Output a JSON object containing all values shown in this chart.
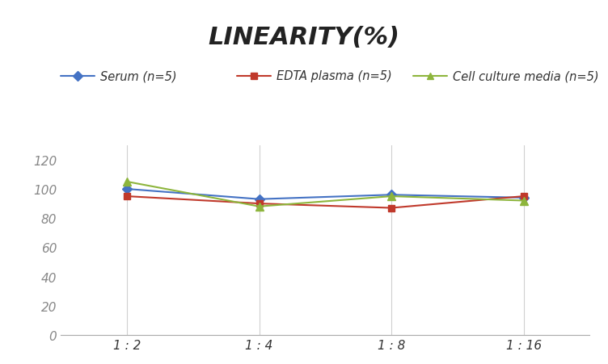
{
  "title": "LINEARITY(%)",
  "x_labels": [
    "1 : 2",
    "1 : 4",
    "1 : 8",
    "1 : 16"
  ],
  "series": [
    {
      "label": "Serum (n=5)",
      "values": [
        100,
        93,
        96,
        94
      ],
      "color": "#4472C4",
      "marker": "D",
      "marker_size": 6,
      "linewidth": 1.5
    },
    {
      "label": "EDTA plasma (n=5)",
      "values": [
        95,
        90,
        87,
        95
      ],
      "color": "#C0392B",
      "marker": "s",
      "marker_size": 6,
      "linewidth": 1.5
    },
    {
      "label": "Cell culture media (n=5)",
      "values": [
        105,
        88,
        95,
        92
      ],
      "color": "#8DB53C",
      "marker": "^",
      "marker_size": 7,
      "linewidth": 1.5
    }
  ],
  "ylim": [
    0,
    130
  ],
  "yticks": [
    0,
    20,
    40,
    60,
    80,
    100,
    120
  ],
  "background_color": "#FFFFFF",
  "grid_color": "#D0D0D0",
  "title_fontsize": 22,
  "legend_fontsize": 10.5,
  "tick_fontsize": 11,
  "tick_color": "#888888"
}
